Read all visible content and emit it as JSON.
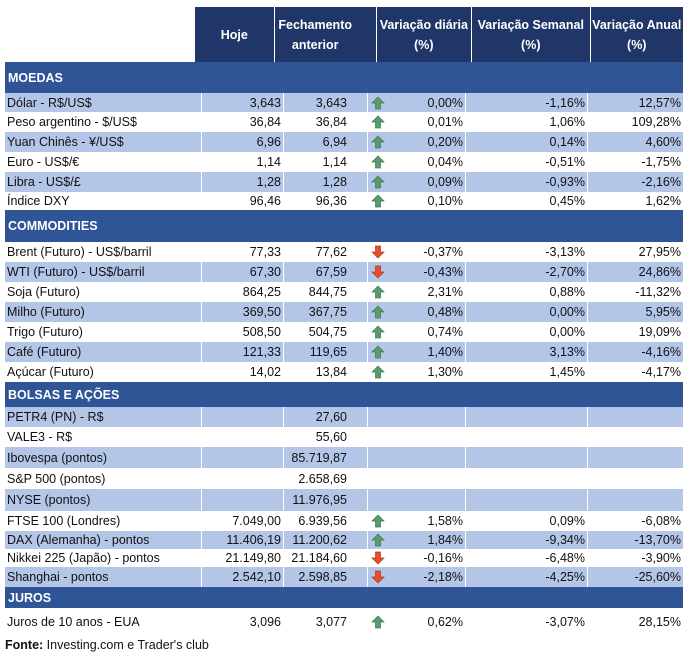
{
  "header": {
    "hoje": "Hoje",
    "fechamento": "Fechamento anterior",
    "var_diaria": "Variação diária (%)",
    "var_semanal": "Variação Semanal (%)",
    "var_anual": "Variação Anual (%)"
  },
  "colors": {
    "header": "#213668",
    "section": "#2f5597",
    "band": "#b4c6e7",
    "up": "#5a9a6e",
    "down": "#e0502a"
  },
  "sections": [
    {
      "title": "MOEDAS",
      "rows": [
        [
          "Dólar - R$/US$",
          "3,643",
          "3,643",
          "up",
          "0,00%",
          "-1,16%",
          "12,57%"
        ],
        [
          "Peso argentino - $/US$",
          "36,84",
          "36,84",
          "up",
          "0,01%",
          "1,06%",
          "109,28%"
        ],
        [
          "Yuan Chinês - ¥/US$",
          "6,96",
          "6,94",
          "up",
          "0,20%",
          "0,14%",
          "4,60%"
        ],
        [
          "Euro - US$/€",
          "1,14",
          "1,14",
          "up",
          "0,04%",
          "-0,51%",
          "-1,75%"
        ],
        [
          "Libra - US$/£",
          "1,28",
          "1,28",
          "up",
          "0,09%",
          "-0,93%",
          "-2,16%"
        ],
        [
          "Índice DXY",
          "96,46",
          "96,36",
          "up",
          "0,10%",
          "0,45%",
          "1,62%"
        ]
      ]
    },
    {
      "title": "COMMODITIES",
      "rows": [
        [
          "Brent (Futuro) - US$/barril",
          "77,33",
          "77,62",
          "down",
          "-0,37%",
          "-3,13%",
          "27,95%"
        ],
        [
          "WTI (Futuro) - US$/barril",
          "67,30",
          "67,59",
          "down",
          "-0,43%",
          "-2,70%",
          "24,86%"
        ],
        [
          "Soja (Futuro)",
          "864,25",
          "844,75",
          "up",
          "2,31%",
          "0,88%",
          "-11,32%"
        ],
        [
          "Milho (Futuro)",
          "369,50",
          "367,75",
          "up",
          "0,48%",
          "0,00%",
          "5,95%"
        ],
        [
          "Trigo (Futuro)",
          "508,50",
          "504,75",
          "up",
          "0,74%",
          "0,00%",
          "19,09%"
        ],
        [
          "Café (Futuro)",
          "121,33",
          "119,65",
          "up",
          "1,40%",
          "3,13%",
          "-4,16%"
        ],
        [
          "Açúcar (Futuro)",
          "14,02",
          "13,84",
          "up",
          "1,30%",
          "1,45%",
          "-4,17%"
        ]
      ]
    },
    {
      "title": "BOLSAS E AÇÕES",
      "rows": [
        [
          "PETR4 (PN) - R$",
          "",
          "27,60",
          "",
          "",
          "",
          ""
        ],
        [
          "VALE3 - R$",
          "",
          "55,60",
          "",
          "",
          "",
          ""
        ],
        [
          "Ibovespa (pontos)",
          "",
          "85.719,87",
          "",
          "",
          "",
          ""
        ],
        [
          "S&P 500 (pontos)",
          "",
          "2.658,69",
          "",
          "",
          "",
          ""
        ],
        [
          "NYSE (pontos)",
          "",
          "11.976,95",
          "",
          "",
          "",
          ""
        ],
        [
          "FTSE 100 (Londres)",
          "7.049,00",
          "6.939,56",
          "up",
          "1,58%",
          "0,09%",
          "-6,08%"
        ],
        [
          "DAX (Alemanha) - pontos",
          "11.406,19",
          "11.200,62",
          "up",
          "1,84%",
          "-9,34%",
          "-13,70%"
        ],
        [
          "Nikkei 225 (Japão) - pontos",
          "21.149,80",
          "21.184,60",
          "down",
          "-0,16%",
          "-6,48%",
          "-3,90%"
        ],
        [
          "Shanghai - pontos",
          "2.542,10",
          "2.598,85",
          "down",
          "-2,18%",
          "-4,25%",
          "-25,60%"
        ]
      ]
    },
    {
      "title": "JUROS",
      "rows": [
        [
          "Juros de 10 anos - EUA",
          "3,096",
          "3,077",
          "up",
          "0,62%",
          "-3,07%",
          "28,15%"
        ]
      ]
    }
  ],
  "footer": {
    "label": "Fonte:",
    "text": " Investing.com e Trader's club"
  }
}
